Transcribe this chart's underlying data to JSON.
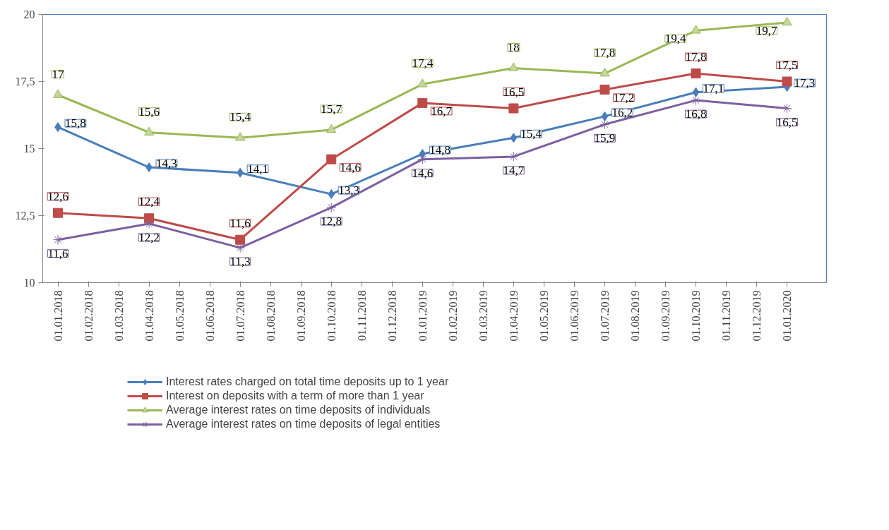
{
  "chart_data": {
    "type": "line",
    "categories": [
      "01.01.2018",
      "01.02.2018",
      "01.03.2018",
      "01.04.2018",
      "01.05.2018",
      "01.06.2018",
      "01.07.2018",
      "01.08.2018",
      "01.09.2018",
      "01.10.2018",
      "01.11.2018",
      "01.12.2018",
      "01.01.2019",
      "01.02.2019",
      "01.03.2019",
      "01.04.2019",
      "01.05.2019",
      "01.06.2019",
      "01.07.2019",
      "01.08.2019",
      "01.09.2019",
      "01.10.2019",
      "01.11.2019",
      "01.12.2019",
      "01.01.2020"
    ],
    "series": [
      {
        "name": "Interest rates charged on total time deposits up to 1 year",
        "color": "#4a7ebb",
        "marker": "diamond",
        "values": [
          15.8,
          null,
          null,
          14.3,
          null,
          null,
          14.1,
          null,
          null,
          13.3,
          null,
          null,
          14.8,
          null,
          null,
          15.4,
          null,
          null,
          16.2,
          null,
          null,
          17.1,
          null,
          null,
          17.3
        ],
        "value_labels": [
          "15,8",
          null,
          null,
          "14,3",
          null,
          null,
          "14,1",
          null,
          null,
          "13,3",
          null,
          null,
          "14,8",
          null,
          null,
          "15,4",
          null,
          null,
          "16,2",
          null,
          null,
          "17,1",
          null,
          null,
          "17,3"
        ]
      },
      {
        "name": "Interest on deposits with a term of more than 1 year",
        "color": "#be4b48",
        "marker": "square",
        "values": [
          12.6,
          null,
          null,
          12.4,
          null,
          null,
          11.6,
          null,
          null,
          14.6,
          null,
          null,
          16.7,
          null,
          null,
          16.5,
          null,
          null,
          17.2,
          null,
          null,
          17.8,
          null,
          null,
          17.5
        ],
        "value_labels": [
          "12,6",
          null,
          null,
          "12,4",
          null,
          null,
          "11,6",
          null,
          null,
          "14,6",
          null,
          null,
          "16,7",
          null,
          null,
          "16,5",
          null,
          null,
          "17,2",
          null,
          null,
          "17,8",
          null,
          null,
          "17,5"
        ]
      },
      {
        "name": "Average interest rates on time deposits of individuals",
        "color": "#98b954",
        "marker": "triangle",
        "values": [
          17,
          null,
          null,
          15.6,
          null,
          null,
          15.4,
          null,
          null,
          15.7,
          null,
          null,
          17.4,
          null,
          null,
          18,
          null,
          null,
          17.8,
          null,
          null,
          19.4,
          null,
          null,
          19.7
        ],
        "value_labels": [
          "17",
          null,
          null,
          "15,6",
          null,
          null,
          "15,4",
          null,
          null,
          "15,7",
          null,
          null,
          "17,4",
          null,
          null,
          "18",
          null,
          null,
          "17,8",
          null,
          null,
          "19,4",
          null,
          null,
          "19,7"
        ]
      },
      {
        "name": "Average interest rates on time deposits of legal entities",
        "color": "#7d5fa0",
        "marker": "cross",
        "values": [
          11.6,
          null,
          null,
          12.2,
          null,
          null,
          11.3,
          null,
          null,
          12.8,
          null,
          null,
          14.6,
          null,
          null,
          14.7,
          null,
          null,
          15.9,
          null,
          null,
          16.8,
          null,
          null,
          16.5
        ],
        "value_labels": [
          "11,6",
          null,
          null,
          "12,2",
          null,
          null,
          "11,3",
          null,
          null,
          "12,8",
          null,
          null,
          "14,6",
          null,
          null,
          "14,7",
          null,
          null,
          "15,9",
          null,
          null,
          "16,8",
          null,
          null,
          "16,5"
        ]
      }
    ],
    "ylim": [
      10,
      20
    ],
    "yticks": [
      10,
      {
        "value": 12.5,
        "label": "12,5"
      },
      15,
      {
        "value": 17.5,
        "label": "17,5"
      },
      20
    ],
    "grid": false,
    "legend": "bottom"
  }
}
